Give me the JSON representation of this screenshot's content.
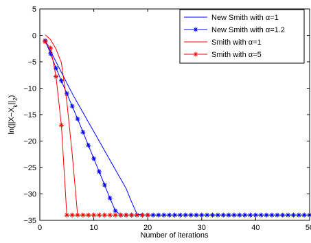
{
  "chart_data": {
    "type": "line",
    "xlabel": "Number of iterations",
    "ylabel": "ln(||X−X_k||_2)",
    "xlim": [
      0,
      50
    ],
    "ylim": [
      -35,
      5
    ],
    "xticks": [
      0,
      10,
      20,
      30,
      40,
      50
    ],
    "yticks": [
      5,
      0,
      -5,
      -10,
      -15,
      -20,
      -25,
      -30,
      -35
    ],
    "grid": false,
    "legend_position": "top-right",
    "series": [
      {
        "name": "New Smith with α=1",
        "color": "#0000ff",
        "marker": "none",
        "x": [
          1,
          2,
          3,
          4,
          5,
          6,
          7,
          8,
          9,
          10,
          11,
          12,
          13,
          14,
          15,
          16,
          17,
          18,
          19,
          20,
          30,
          40,
          50
        ],
        "y": [
          -1.2,
          -3.0,
          -5.0,
          -7.0,
          -9.0,
          -11.0,
          -12.8,
          -14.6,
          -16.4,
          -18.2,
          -20.0,
          -21.8,
          -23.6,
          -25.4,
          -27.2,
          -29.0,
          -31.5,
          -33.8,
          -34.0,
          -34.0,
          -34.0,
          -34.0,
          -34.0
        ]
      },
      {
        "name": "New Smith with α=1.2",
        "color": "#0000ff",
        "marker": "star",
        "x": [
          1,
          2,
          3,
          4,
          5,
          6,
          7,
          8,
          9,
          10,
          11,
          12,
          13,
          14,
          15,
          16,
          17,
          18,
          19,
          20,
          21,
          22,
          23,
          24,
          25,
          26,
          27,
          28,
          29,
          30,
          31,
          32,
          33,
          34,
          35,
          36,
          37,
          38,
          39,
          40,
          41,
          42,
          43,
          44,
          45,
          46,
          47,
          48,
          49,
          50
        ],
        "y": [
          -1.0,
          -3.5,
          -6.2,
          -8.6,
          -11.0,
          -13.4,
          -15.8,
          -18.3,
          -20.8,
          -23.3,
          -25.8,
          -28.3,
          -30.8,
          -33.2,
          -34.0,
          -34.0,
          -34.0,
          -34.0,
          -34.0,
          -34.0,
          -34.0,
          -34.0,
          -34.0,
          -34.0,
          -34.0,
          -34.0,
          -34.0,
          -34.0,
          -34.0,
          -34.0,
          -34.0,
          -34.0,
          -34.0,
          -34.0,
          -34.0,
          -34.0,
          -34.0,
          -34.0,
          -34.0,
          -34.0,
          -34.0,
          -34.0,
          -34.0,
          -34.0,
          -34.0,
          -34.0,
          -34.0,
          -34.0,
          -34.0,
          -34.0
        ]
      },
      {
        "name": "Smith with α=1",
        "color": "#ff0000",
        "marker": "none",
        "x": [
          1,
          2,
          3,
          4,
          5,
          6,
          7,
          8,
          9,
          10
        ],
        "y": [
          0.1,
          -0.8,
          -2.6,
          -5.2,
          -12.5,
          -22.5,
          -34.0,
          -34.0,
          -34.0,
          -34.0
        ]
      },
      {
        "name": "Smith with α=5",
        "color": "#ff0000",
        "marker": "star",
        "x": [
          1,
          2,
          3,
          4,
          5,
          6,
          7,
          8,
          9,
          10,
          11,
          12,
          13,
          14,
          15,
          16,
          17,
          18,
          19,
          20
        ],
        "y": [
          -1.2,
          -2.4,
          -7.8,
          -17.0,
          -34.0,
          -34.0,
          -34.0,
          -34.0,
          -34.0,
          -34.0,
          -34.0,
          -34.0,
          -34.0,
          -34.0,
          -34.0,
          -34.0,
          -34.0,
          -34.0,
          -34.0,
          -34.0
        ]
      }
    ]
  }
}
